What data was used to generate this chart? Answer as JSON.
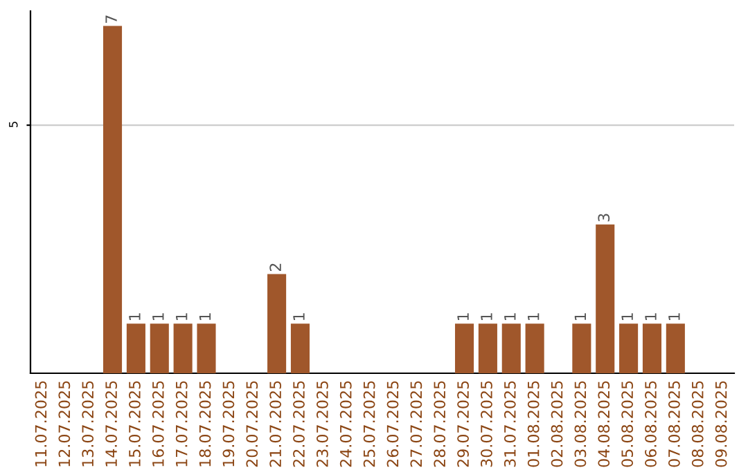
{
  "chart_data": {
    "type": "bar",
    "categories": [
      "11.07.2025",
      "12.07.2025",
      "13.07.2025",
      "14.07.2025",
      "15.07.2025",
      "16.07.2025",
      "17.07.2025",
      "18.07.2025",
      "19.07.2025",
      "20.07.2025",
      "21.07.2025",
      "22.07.2025",
      "23.07.2025",
      "24.07.2025",
      "25.07.2025",
      "26.07.2025",
      "27.07.2025",
      "28.07.2025",
      "29.07.2025",
      "30.07.2025",
      "31.07.2025",
      "01.08.2025",
      "02.08.2025",
      "03.08.2025",
      "04.08.2025",
      "05.08.2025",
      "06.08.2025",
      "07.08.2025",
      "08.08.2025",
      "09.08.2025"
    ],
    "values": [
      null,
      null,
      null,
      7,
      1,
      1,
      1,
      1,
      null,
      null,
      2,
      1,
      null,
      null,
      null,
      null,
      null,
      null,
      1,
      1,
      1,
      1,
      null,
      1,
      3,
      1,
      1,
      1,
      null,
      null
    ],
    "color": "#a0572b",
    "ylim": [
      0,
      7.3
    ],
    "yticks": [
      5
    ],
    "grid": "y",
    "data_labels": true
  }
}
